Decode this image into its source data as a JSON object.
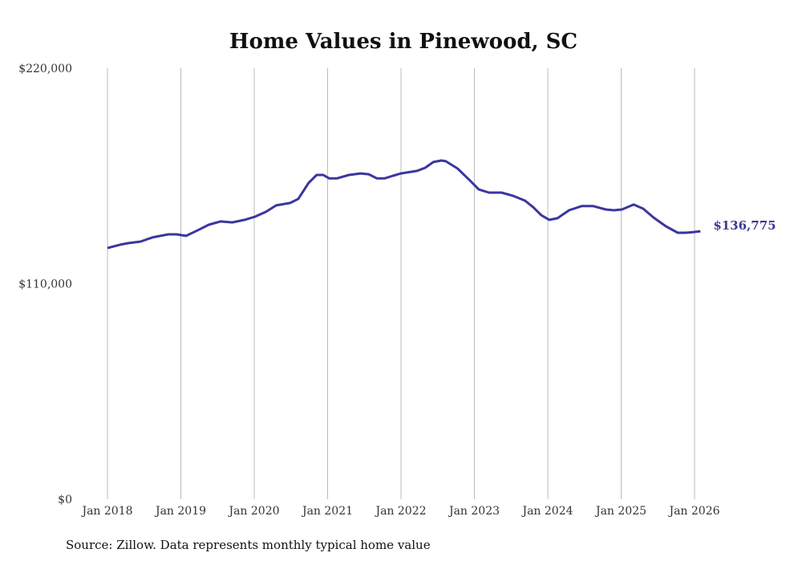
{
  "chart_data": {
    "type": "line",
    "title": "Home Values in Pinewood, SC",
    "source": "Source: Zillow. Data represents monthly typical home value",
    "ylim": [
      0,
      220000
    ],
    "xlim": [
      2018,
      2026
    ],
    "y_ticks": [
      {
        "value": 0,
        "label": "$0"
      },
      {
        "value": 110000,
        "label": "$110,000"
      },
      {
        "value": 220000,
        "label": "$220,000"
      }
    ],
    "x_ticks": [
      {
        "value": 2018,
        "label": "Jan 2018"
      },
      {
        "value": 2019,
        "label": "Jan 2019"
      },
      {
        "value": 2020,
        "label": "Jan 2020"
      },
      {
        "value": 2021,
        "label": "Jan 2021"
      },
      {
        "value": 2022,
        "label": "Jan 2022"
      },
      {
        "value": 2023,
        "label": "Jan 2023"
      },
      {
        "value": 2024,
        "label": "Jan 2024"
      },
      {
        "value": 2025,
        "label": "Jan 2025"
      },
      {
        "value": 2026,
        "label": "Jan 2026"
      }
    ],
    "grid": "vertical",
    "line_color": "#3b369e",
    "end_label": "$136,775",
    "series": [
      {
        "name": "Typical home value",
        "points": [
          [
            2018.0,
            128200
          ],
          [
            2018.17,
            129900
          ],
          [
            2018.28,
            130700
          ],
          [
            2018.45,
            131500
          ],
          [
            2018.61,
            133600
          ],
          [
            2018.72,
            134400
          ],
          [
            2018.83,
            135200
          ],
          [
            2018.94,
            135200
          ],
          [
            2019.07,
            134400
          ],
          [
            2019.21,
            136900
          ],
          [
            2019.38,
            140100
          ],
          [
            2019.54,
            141800
          ],
          [
            2019.7,
            141300
          ],
          [
            2019.87,
            142600
          ],
          [
            2020.01,
            144200
          ],
          [
            2020.16,
            146700
          ],
          [
            2020.3,
            150000
          ],
          [
            2020.49,
            151200
          ],
          [
            2020.6,
            153300
          ],
          [
            2020.74,
            161400
          ],
          [
            2020.85,
            165500
          ],
          [
            2020.94,
            165500
          ],
          [
            2021.02,
            163800
          ],
          [
            2021.13,
            163800
          ],
          [
            2021.29,
            165500
          ],
          [
            2021.45,
            166300
          ],
          [
            2021.56,
            165900
          ],
          [
            2021.67,
            163800
          ],
          [
            2021.78,
            163800
          ],
          [
            2021.89,
            165100
          ],
          [
            2022.0,
            166300
          ],
          [
            2022.22,
            167600
          ],
          [
            2022.33,
            169200
          ],
          [
            2022.44,
            172100
          ],
          [
            2022.55,
            172900
          ],
          [
            2022.61,
            172500
          ],
          [
            2022.77,
            168800
          ],
          [
            2022.93,
            163000
          ],
          [
            2023.06,
            158100
          ],
          [
            2023.2,
            156500
          ],
          [
            2023.37,
            156500
          ],
          [
            2023.53,
            154800
          ],
          [
            2023.69,
            152400
          ],
          [
            2023.8,
            149100
          ],
          [
            2023.91,
            145000
          ],
          [
            2024.02,
            142600
          ],
          [
            2024.13,
            143400
          ],
          [
            2024.29,
            147500
          ],
          [
            2024.46,
            149600
          ],
          [
            2024.62,
            149600
          ],
          [
            2024.79,
            147900
          ],
          [
            2024.9,
            147500
          ],
          [
            2025.01,
            147900
          ],
          [
            2025.17,
            150400
          ],
          [
            2025.3,
            148300
          ],
          [
            2025.44,
            143800
          ],
          [
            2025.61,
            139300
          ],
          [
            2025.77,
            136000
          ],
          [
            2025.88,
            136000
          ],
          [
            2025.99,
            136400
          ],
          [
            2026.08,
            136775
          ]
        ]
      }
    ]
  }
}
